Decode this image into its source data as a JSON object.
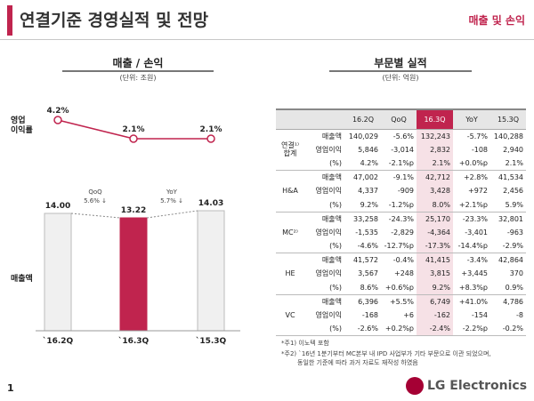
{
  "header": {
    "title": "연결기준 경영실적 및 전망",
    "tag": "매출 및 손익"
  },
  "left": {
    "title": "매출 / 손익",
    "unit": "(단위: 조원)",
    "op_margin_label": "영업\n이익률",
    "sales_label": "매출액",
    "periods": [
      "`16.2Q",
      "`16.3Q",
      "`15.3Q"
    ],
    "op_margin_labels": [
      "4.2%",
      "2.1%",
      "2.1%"
    ],
    "sales_labels": [
      "14.00",
      "13.22",
      "14.03"
    ],
    "qoq": {
      "label": "QoQ",
      "value": "5.6% ↓"
    },
    "yoy": {
      "label": "YoY",
      "value": "5.7% ↓"
    }
  },
  "chart_data": [
    {
      "type": "line",
      "title": "",
      "ylabel": "영업이익률",
      "categories": [
        "`16.2Q",
        "`16.3Q",
        "`15.3Q"
      ],
      "values": [
        4.2,
        2.1,
        2.1
      ],
      "unit": "%"
    },
    {
      "type": "bar",
      "title": "",
      "ylabel": "매출액",
      "categories": [
        "`16.2Q",
        "`16.3Q",
        "`15.3Q"
      ],
      "values": [
        14.0,
        13.22,
        14.03
      ],
      "unit": "조원",
      "highlight": "`16.3Q",
      "colors": {
        "highlight": "#c0244e",
        "normal": "#f0f0f0"
      }
    }
  ],
  "right": {
    "title": "부문별 실적",
    "unit": "(단위: 억원)",
    "columns": [
      "",
      "",
      "16.2Q",
      "QoQ",
      "16.3Q",
      "YoY",
      "15.3Q"
    ],
    "groups": [
      {
        "name": "연결¹⁾\n합계",
        "rows": [
          {
            "metric": "매출액",
            "cells": [
              "140,029",
              "-5.6%",
              "132,243",
              "-5.7%",
              "140,288"
            ]
          },
          {
            "metric": "영업이익",
            "cells": [
              "5,846",
              "-3,014",
              "2,832",
              "-108",
              "2,940"
            ]
          },
          {
            "metric": "(%)",
            "cells": [
              "4.2%",
              "-2.1%p",
              "2.1%",
              "+0.0%p",
              "2.1%"
            ]
          }
        ]
      },
      {
        "name": "H&A",
        "rows": [
          {
            "metric": "매출액",
            "cells": [
              "47,002",
              "-9.1%",
              "42,712",
              "+2.8%",
              "41,534"
            ]
          },
          {
            "metric": "영업이익",
            "cells": [
              "4,337",
              "-909",
              "3,428",
              "+972",
              "2,456"
            ]
          },
          {
            "metric": "(%)",
            "cells": [
              "9.2%",
              "-1.2%p",
              "8.0%",
              "+2.1%p",
              "5.9%"
            ]
          }
        ]
      },
      {
        "name": "MC²⁾",
        "rows": [
          {
            "metric": "매출액",
            "cells": [
              "33,258",
              "-24.3%",
              "25,170",
              "-23.3%",
              "32,801"
            ]
          },
          {
            "metric": "영업이익",
            "cells": [
              "-1,535",
              "-2,829",
              "-4,364",
              "-3,401",
              "-963"
            ]
          },
          {
            "metric": "(%)",
            "cells": [
              "-4.6%",
              "-12.7%p",
              "-17.3%",
              "-14.4%p",
              "-2.9%"
            ]
          }
        ]
      },
      {
        "name": "HE",
        "rows": [
          {
            "metric": "매출액",
            "cells": [
              "41,572",
              "-0.4%",
              "41,415",
              "-3.4%",
              "42,864"
            ]
          },
          {
            "metric": "영업이익",
            "cells": [
              "3,567",
              "+248",
              "3,815",
              "+3,445",
              "370"
            ]
          },
          {
            "metric": "(%)",
            "cells": [
              "8.6%",
              "+0.6%p",
              "9.2%",
              "+8.3%p",
              "0.9%"
            ]
          }
        ]
      },
      {
        "name": "VC",
        "rows": [
          {
            "metric": "매출액",
            "cells": [
              "6,396",
              "+5.5%",
              "6,749",
              "+41.0%",
              "4,786"
            ]
          },
          {
            "metric": "영업이익",
            "cells": [
              "-168",
              "+6",
              "-162",
              "-154",
              "-8"
            ]
          },
          {
            "metric": "(%)",
            "cells": [
              "-2.6%",
              "+0.2%p",
              "-2.4%",
              "-2.2%p",
              "-0.2%"
            ]
          }
        ]
      }
    ],
    "footnotes": [
      "*주1) 이노텍 포함",
      "*주2) `16년 1분기부터 MC본부 내 IPD 사업부가 기타 부문으로 이관 되었으며,",
      "동일한 기준에 따라 과거 자료도 재작성 하였음"
    ]
  },
  "footer": {
    "page": "1",
    "logo": "LG Electronics"
  }
}
